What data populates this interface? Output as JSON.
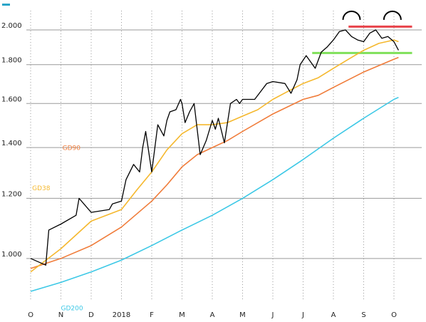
{
  "chart_data": {
    "type": "line",
    "title": "",
    "xlabel": "",
    "ylabel": "",
    "y_scale": "log",
    "ylim": [
      880,
      2120
    ],
    "y_ticks": [
      {
        "value": 1000,
        "label": "1.000"
      },
      {
        "value": 1200,
        "label": "1.200"
      },
      {
        "value": 1400,
        "label": "1.400"
      },
      {
        "value": 1600,
        "label": "1.600"
      },
      {
        "value": 1800,
        "label": "1.800"
      },
      {
        "value": 2000,
        "label": "2.000"
      }
    ],
    "x_ticks": [
      "O",
      "N",
      "D",
      "2018",
      "F",
      "M",
      "A",
      "M",
      "J",
      "J",
      "A",
      "S",
      "O"
    ],
    "grid": {
      "horizontal": true,
      "vertical_dotted": true
    },
    "colors": {
      "price": "#000000",
      "gd38": "#f5b82e",
      "gd90": "#f07c3a",
      "gd200": "#3cc8e6",
      "resistance": "#e8434a",
      "support": "#7fe05a",
      "grid": "#9a9a9a",
      "corner_mark": "#2aa5c9"
    },
    "series": [
      {
        "key": "price",
        "x": [
          0.0,
          0.5,
          0.6,
          1.0,
          1.5,
          1.6,
          2.0,
          2.6,
          2.7,
          3.0,
          3.15,
          3.4,
          3.6,
          3.7,
          3.8,
          4.0,
          4.2,
          4.4,
          4.5,
          4.6,
          4.8,
          4.95,
          5.0,
          5.1,
          5.25,
          5.4,
          5.6,
          5.8,
          6.0,
          6.1,
          6.2,
          6.4,
          6.6,
          6.8,
          6.9,
          7.0,
          7.4,
          7.8,
          8.0,
          8.4,
          8.6,
          8.8,
          8.9,
          9.1,
          9.4,
          9.6,
          9.8,
          10.0,
          10.2,
          10.4,
          10.6,
          10.8,
          11.0,
          11.2,
          11.4,
          11.6,
          11.8,
          12.0,
          12.15
        ],
        "y": [
          1000,
          980,
          1090,
          1110,
          1140,
          1200,
          1150,
          1160,
          1180,
          1190,
          1270,
          1330,
          1300,
          1400,
          1470,
          1300,
          1500,
          1450,
          1520,
          1560,
          1570,
          1620,
          1600,
          1510,
          1560,
          1600,
          1370,
          1430,
          1520,
          1480,
          1530,
          1420,
          1600,
          1620,
          1600,
          1620,
          1620,
          1700,
          1710,
          1700,
          1650,
          1720,
          1800,
          1850,
          1780,
          1870,
          1900,
          1940,
          1990,
          2000,
          1960,
          1940,
          1930,
          1980,
          2000,
          1950,
          1960,
          1930,
          1880
        ]
      },
      {
        "key": "gd38",
        "name": "GD38",
        "x": [
          0.0,
          1.0,
          2.0,
          3.0,
          3.5,
          4.0,
          4.5,
          5.0,
          5.5,
          6.0,
          6.5,
          7.0,
          7.5,
          8.0,
          8.5,
          9.0,
          9.5,
          10.0,
          10.5,
          11.0,
          11.5,
          12.0,
          12.15
        ],
        "y": [
          960,
          1030,
          1120,
          1160,
          1230,
          1300,
          1390,
          1460,
          1500,
          1500,
          1510,
          1540,
          1570,
          1620,
          1660,
          1700,
          1730,
          1780,
          1830,
          1880,
          1920,
          1940,
          1930
        ]
      },
      {
        "key": "gd90",
        "name": "GD90",
        "x": [
          0.0,
          1.0,
          2.0,
          3.0,
          4.0,
          4.5,
          5.0,
          5.5,
          6.0,
          6.5,
          7.0,
          8.0,
          9.0,
          9.5,
          10.0,
          11.0,
          12.0,
          12.15
        ],
        "y": [
          970,
          1000,
          1040,
          1100,
          1190,
          1250,
          1320,
          1370,
          1400,
          1430,
          1470,
          1550,
          1620,
          1640,
          1680,
          1760,
          1830,
          1840
        ]
      },
      {
        "key": "gd200",
        "name": "GD200",
        "x": [
          0.0,
          1.0,
          2.0,
          3.0,
          4.0,
          5.0,
          6.0,
          7.0,
          8.0,
          9.0,
          10.0,
          11.0,
          12.0,
          12.15
        ],
        "y": [
          905,
          930,
          960,
          995,
          1040,
          1090,
          1140,
          1200,
          1270,
          1350,
          1440,
          1530,
          1620,
          1630
        ]
      }
    ],
    "levels": [
      {
        "key": "resistance",
        "value": 2020,
        "x_start": 10.5,
        "x_end": 12.6
      },
      {
        "key": "support",
        "value": 1865,
        "x_start": 9.3,
        "x_end": 12.6
      }
    ],
    "pattern_marks": [
      {
        "name": "top-1",
        "x": 10.6,
        "value": 2080
      },
      {
        "name": "top-2",
        "x": 11.95,
        "value": 2080
      }
    ],
    "annotations": [
      {
        "key": "gd90",
        "text": "GD90",
        "x": 1.05,
        "value": 1390
      },
      {
        "key": "gd38",
        "text": "GD38",
        "x": 0.05,
        "value": 1230
      },
      {
        "key": "gd200",
        "text": "GD200",
        "x": 1.0,
        "value": 855
      }
    ]
  }
}
